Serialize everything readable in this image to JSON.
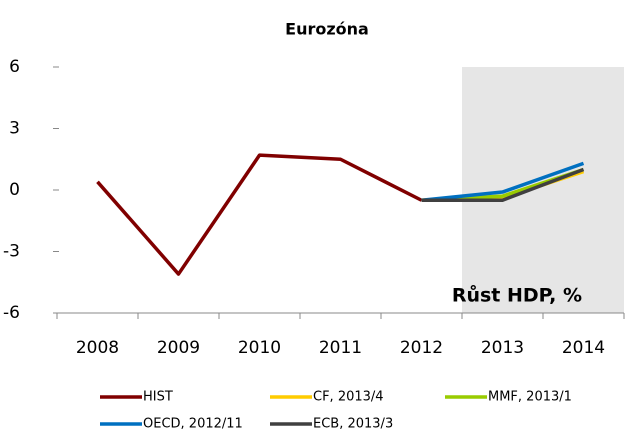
{
  "chart_data": {
    "type": "line",
    "title": "Eurozóna",
    "annotation": "Růst HDP, %",
    "categories": [
      "2008",
      "2009",
      "2010",
      "2011",
      "2012",
      "2013",
      "2014"
    ],
    "shade_from_category": "2013",
    "series": [
      {
        "name": "HIST",
        "color": "#800000",
        "values": [
          0.4,
          -4.1,
          1.7,
          1.5,
          -0.5,
          null,
          null
        ]
      },
      {
        "name": "CF, 2013/4",
        "color": "#ffcc00",
        "values": [
          null,
          null,
          null,
          null,
          -0.5,
          -0.4,
          0.9
        ]
      },
      {
        "name": "MMF, 2013/1",
        "color": "#99cc00",
        "values": [
          null,
          null,
          null,
          null,
          -0.5,
          -0.3,
          1.0
        ]
      },
      {
        "name": "OECD, 2012/11",
        "color": "#0070c0",
        "values": [
          null,
          null,
          null,
          null,
          -0.5,
          -0.1,
          1.3
        ]
      },
      {
        "name": "ECB, 2013/3",
        "color": "#404040",
        "values": [
          null,
          null,
          null,
          null,
          -0.5,
          -0.5,
          1.0
        ]
      }
    ],
    "ylim": [
      -6,
      6
    ],
    "yticks": [
      -6,
      -3,
      0,
      3,
      6
    ]
  }
}
